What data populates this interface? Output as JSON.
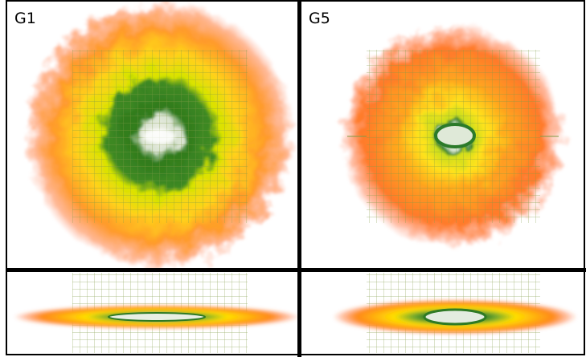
{
  "panels": [
    {
      "label": "G1"
    },
    {
      "label": "G5"
    }
  ]
}
